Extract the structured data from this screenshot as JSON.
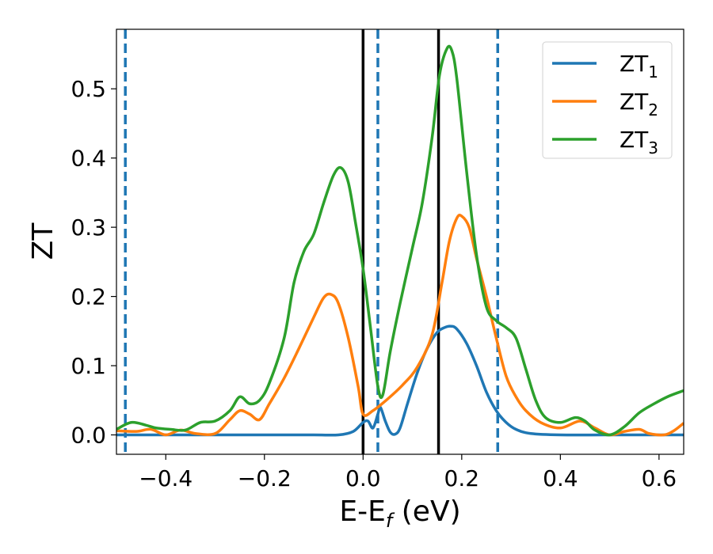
{
  "chart_data": {
    "type": "line",
    "title": "",
    "xlabel": "E-E",
    "xlabel_sub": "f",
    "xlabel_unit": " (eV)",
    "ylabel": "ZT",
    "xlim": [
      -0.5,
      0.65
    ],
    "ylim": [
      -0.028,
      0.586
    ],
    "xticks": [
      -0.4,
      -0.2,
      0.0,
      0.2,
      0.4,
      0.6
    ],
    "xtick_labels": [
      "−0.4",
      "−0.2",
      "0.0",
      "0.2",
      "0.4",
      "0.6"
    ],
    "yticks": [
      0.0,
      0.1,
      0.2,
      0.3,
      0.4,
      0.5
    ],
    "ytick_labels": [
      "0.0",
      "0.1",
      "0.2",
      "0.3",
      "0.4",
      "0.5"
    ],
    "grid": false,
    "legend_position": "top-right",
    "vlines": [
      {
        "x": -0.482,
        "style": "dashed",
        "color": "#1f77b4"
      },
      {
        "x": 0.0,
        "style": "solid",
        "color": "#000000"
      },
      {
        "x": 0.03,
        "style": "dashed",
        "color": "#1f77b4"
      },
      {
        "x": 0.153,
        "style": "solid",
        "color": "#000000"
      },
      {
        "x": 0.273,
        "style": "dashed",
        "color": "#1f77b4"
      }
    ],
    "series": [
      {
        "name": "ZT",
        "sub": "1",
        "color": "#1f77b4",
        "points": [
          [
            -0.5,
            0.0
          ],
          [
            -0.4,
            0.0
          ],
          [
            -0.3,
            0.0
          ],
          [
            -0.2,
            0.0
          ],
          [
            -0.1,
            0.0
          ],
          [
            -0.05,
            0.0
          ],
          [
            -0.02,
            0.005
          ],
          [
            0.0,
            0.018
          ],
          [
            0.01,
            0.02
          ],
          [
            0.02,
            0.01
          ],
          [
            0.03,
            0.03
          ],
          [
            0.035,
            0.04
          ],
          [
            0.045,
            0.02
          ],
          [
            0.055,
            0.004
          ],
          [
            0.065,
            0.001
          ],
          [
            0.075,
            0.01
          ],
          [
            0.09,
            0.045
          ],
          [
            0.11,
            0.09
          ],
          [
            0.13,
            0.125
          ],
          [
            0.15,
            0.148
          ],
          [
            0.165,
            0.155
          ],
          [
            0.178,
            0.157
          ],
          [
            0.19,
            0.153
          ],
          [
            0.21,
            0.132
          ],
          [
            0.23,
            0.1
          ],
          [
            0.25,
            0.062
          ],
          [
            0.27,
            0.035
          ],
          [
            0.29,
            0.018
          ],
          [
            0.31,
            0.008
          ],
          [
            0.34,
            0.002
          ],
          [
            0.4,
            0.0
          ],
          [
            0.5,
            0.0
          ],
          [
            0.65,
            0.0
          ]
        ]
      },
      {
        "name": "ZT",
        "sub": "2",
        "color": "#ff7f0e",
        "points": [
          [
            -0.5,
            0.006
          ],
          [
            -0.46,
            0.005
          ],
          [
            -0.43,
            0.008
          ],
          [
            -0.4,
            0.0
          ],
          [
            -0.37,
            0.007
          ],
          [
            -0.34,
            0.002
          ],
          [
            -0.3,
            0.002
          ],
          [
            -0.27,
            0.022
          ],
          [
            -0.25,
            0.035
          ],
          [
            -0.23,
            0.03
          ],
          [
            -0.21,
            0.022
          ],
          [
            -0.19,
            0.045
          ],
          [
            -0.16,
            0.082
          ],
          [
            -0.13,
            0.125
          ],
          [
            -0.1,
            0.17
          ],
          [
            -0.08,
            0.198
          ],
          [
            -0.065,
            0.203
          ],
          [
            -0.05,
            0.19
          ],
          [
            -0.03,
            0.14
          ],
          [
            -0.01,
            0.07
          ],
          [
            0.0,
            0.03
          ],
          [
            0.02,
            0.035
          ],
          [
            0.05,
            0.052
          ],
          [
            0.08,
            0.072
          ],
          [
            0.11,
            0.098
          ],
          [
            0.14,
            0.145
          ],
          [
            0.16,
            0.22
          ],
          [
            0.175,
            0.28
          ],
          [
            0.19,
            0.313
          ],
          [
            0.2,
            0.316
          ],
          [
            0.215,
            0.3
          ],
          [
            0.23,
            0.255
          ],
          [
            0.25,
            0.2
          ],
          [
            0.27,
            0.14
          ],
          [
            0.29,
            0.085
          ],
          [
            0.31,
            0.055
          ],
          [
            0.33,
            0.035
          ],
          [
            0.36,
            0.018
          ],
          [
            0.4,
            0.01
          ],
          [
            0.44,
            0.02
          ],
          [
            0.47,
            0.01
          ],
          [
            0.5,
            0.0
          ],
          [
            0.53,
            0.005
          ],
          [
            0.56,
            0.008
          ],
          [
            0.58,
            0.002
          ],
          [
            0.61,
            0.0
          ],
          [
            0.63,
            0.006
          ],
          [
            0.65,
            0.017
          ]
        ]
      },
      {
        "name": "ZT",
        "sub": "3",
        "color": "#2ca02c",
        "points": [
          [
            -0.5,
            0.008
          ],
          [
            -0.47,
            0.018
          ],
          [
            -0.44,
            0.014
          ],
          [
            -0.42,
            0.01
          ],
          [
            -0.39,
            0.008
          ],
          [
            -0.36,
            0.007
          ],
          [
            -0.33,
            0.018
          ],
          [
            -0.3,
            0.02
          ],
          [
            -0.27,
            0.035
          ],
          [
            -0.25,
            0.055
          ],
          [
            -0.23,
            0.045
          ],
          [
            -0.21,
            0.05
          ],
          [
            -0.19,
            0.075
          ],
          [
            -0.16,
            0.14
          ],
          [
            -0.14,
            0.22
          ],
          [
            -0.12,
            0.265
          ],
          [
            -0.1,
            0.29
          ],
          [
            -0.08,
            0.335
          ],
          [
            -0.06,
            0.375
          ],
          [
            -0.045,
            0.386
          ],
          [
            -0.03,
            0.365
          ],
          [
            -0.015,
            0.305
          ],
          [
            0.0,
            0.24
          ],
          [
            0.015,
            0.155
          ],
          [
            0.03,
            0.07
          ],
          [
            0.04,
            0.058
          ],
          [
            0.055,
            0.12
          ],
          [
            0.075,
            0.19
          ],
          [
            0.1,
            0.27
          ],
          [
            0.12,
            0.335
          ],
          [
            0.14,
            0.43
          ],
          [
            0.155,
            0.52
          ],
          [
            0.17,
            0.558
          ],
          [
            0.18,
            0.555
          ],
          [
            0.19,
            0.515
          ],
          [
            0.21,
            0.38
          ],
          [
            0.23,
            0.26
          ],
          [
            0.25,
            0.185
          ],
          [
            0.27,
            0.165
          ],
          [
            0.29,
            0.155
          ],
          [
            0.31,
            0.14
          ],
          [
            0.33,
            0.095
          ],
          [
            0.35,
            0.05
          ],
          [
            0.37,
            0.025
          ],
          [
            0.4,
            0.018
          ],
          [
            0.43,
            0.025
          ],
          [
            0.45,
            0.02
          ],
          [
            0.47,
            0.007
          ],
          [
            0.5,
            0.0
          ],
          [
            0.53,
            0.012
          ],
          [
            0.56,
            0.032
          ],
          [
            0.59,
            0.045
          ],
          [
            0.62,
            0.056
          ],
          [
            0.65,
            0.064
          ]
        ]
      }
    ]
  }
}
